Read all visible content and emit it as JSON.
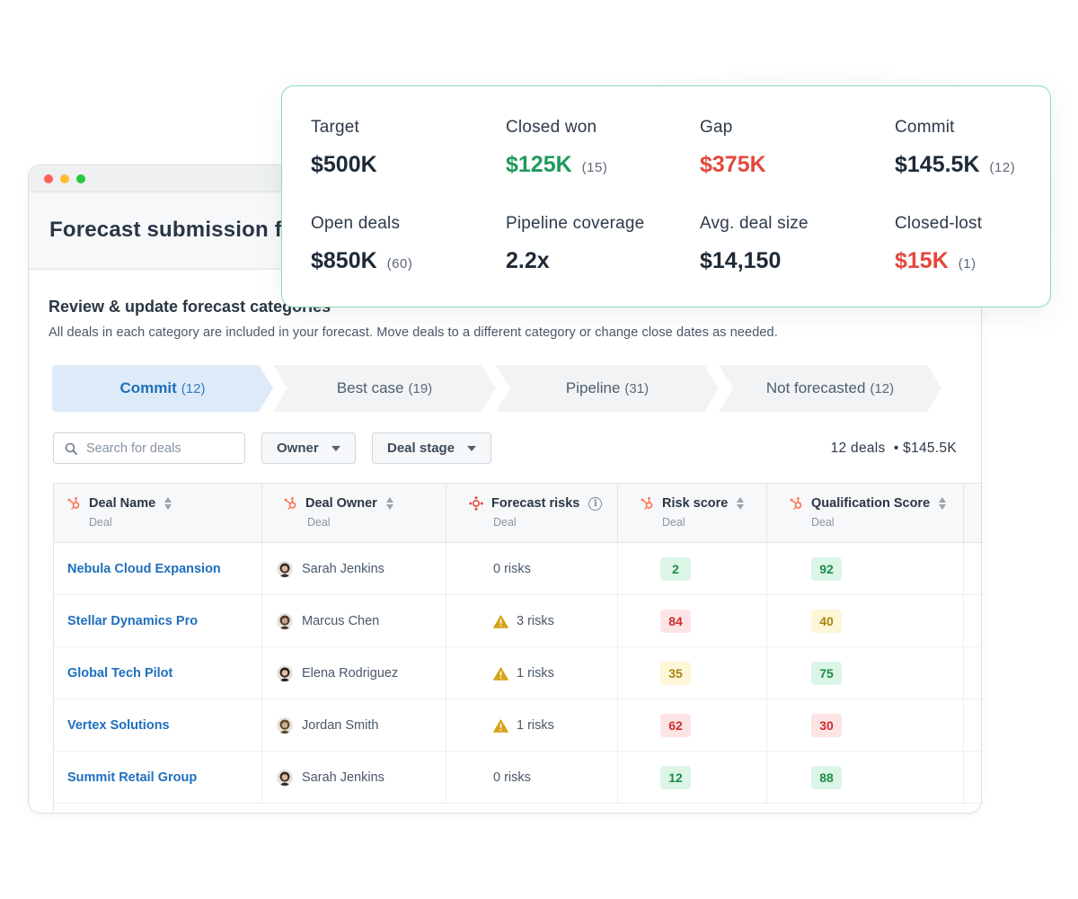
{
  "window": {
    "title": "Forecast submission for"
  },
  "section": {
    "title": "Review & update forecast categories",
    "description": "All deals in each category are included in your forecast. Move deals to a different category or change close dates as needed."
  },
  "tabs": [
    {
      "label": "Commit",
      "count": "(12)",
      "active": true
    },
    {
      "label": "Best case",
      "count": "(19)",
      "active": false
    },
    {
      "label": "Pipeline",
      "count": "(31)",
      "active": false
    },
    {
      "label": "Not forecasted",
      "count": "(12)",
      "active": false
    }
  ],
  "filters": {
    "search_placeholder": "Search for deals",
    "owner_label": "Owner",
    "stage_label": "Deal stage",
    "summary_count": "12 deals",
    "summary_total": "• $145.5K"
  },
  "table": {
    "columns": [
      {
        "label": "Deal Name",
        "sub": "Deal"
      },
      {
        "label": "Deal Owner",
        "sub": "Deal"
      },
      {
        "label": "Forecast risks",
        "sub": "Deal"
      },
      {
        "label": "Risk score",
        "sub": "Deal"
      },
      {
        "label": "Qualification Score",
        "sub": "Deal"
      }
    ],
    "rows": [
      {
        "deal": "Nebula Cloud Expansion",
        "owner": "Sarah Jenkins",
        "risks": "0 risks",
        "warning": false,
        "risk_score": "2",
        "risk_level": "green",
        "qual_score": "92",
        "qual_level": "green"
      },
      {
        "deal": "Stellar Dynamics Pro",
        "owner": "Marcus Chen",
        "risks": "3 risks",
        "warning": true,
        "risk_score": "84",
        "risk_level": "red",
        "qual_score": "40",
        "qual_level": "yellow"
      },
      {
        "deal": "Global Tech Pilot",
        "owner": "Elena Rodriguez",
        "risks": "1 risks",
        "warning": true,
        "risk_score": "35",
        "risk_level": "yellow",
        "qual_score": "75",
        "qual_level": "green"
      },
      {
        "deal": "Vertex Solutions",
        "owner": "Jordan Smith",
        "risks": "1 risks",
        "warning": true,
        "risk_score": "62",
        "risk_level": "red",
        "qual_score": "30",
        "qual_level": "red"
      },
      {
        "deal": "Summit Retail Group",
        "owner": "Sarah Jenkins",
        "risks": "0 risks",
        "warning": false,
        "risk_score": "12",
        "risk_level": "green",
        "qual_score": "88",
        "qual_level": "green"
      }
    ]
  },
  "stats": [
    {
      "label": "Target",
      "value": "$500K",
      "count": "",
      "tone": "default"
    },
    {
      "label": "Closed won",
      "value": "$125K",
      "count": "(15)",
      "tone": "green"
    },
    {
      "label": "Gap",
      "value": "$375K",
      "count": "",
      "tone": "red"
    },
    {
      "label": "Commit",
      "value": "$145.5K",
      "count": "(12)",
      "tone": "default"
    },
    {
      "label": "Open deals",
      "value": "$850K",
      "count": "(60)",
      "tone": "default"
    },
    {
      "label": "Pipeline coverage",
      "value": "2.2x",
      "count": "",
      "tone": "default"
    },
    {
      "label": "Avg. deal size",
      "value": "$14,150",
      "count": "",
      "tone": "default"
    },
    {
      "label": "Closed-lost",
      "value": "$15K",
      "count": "(1)",
      "tone": "red"
    }
  ],
  "colors": {
    "accent": "#1f6fbd",
    "hubspot_orange": "#ff7a59",
    "positive": "#1f9a5a",
    "negative": "#e4483d",
    "card_border": "#8fdbb0"
  }
}
